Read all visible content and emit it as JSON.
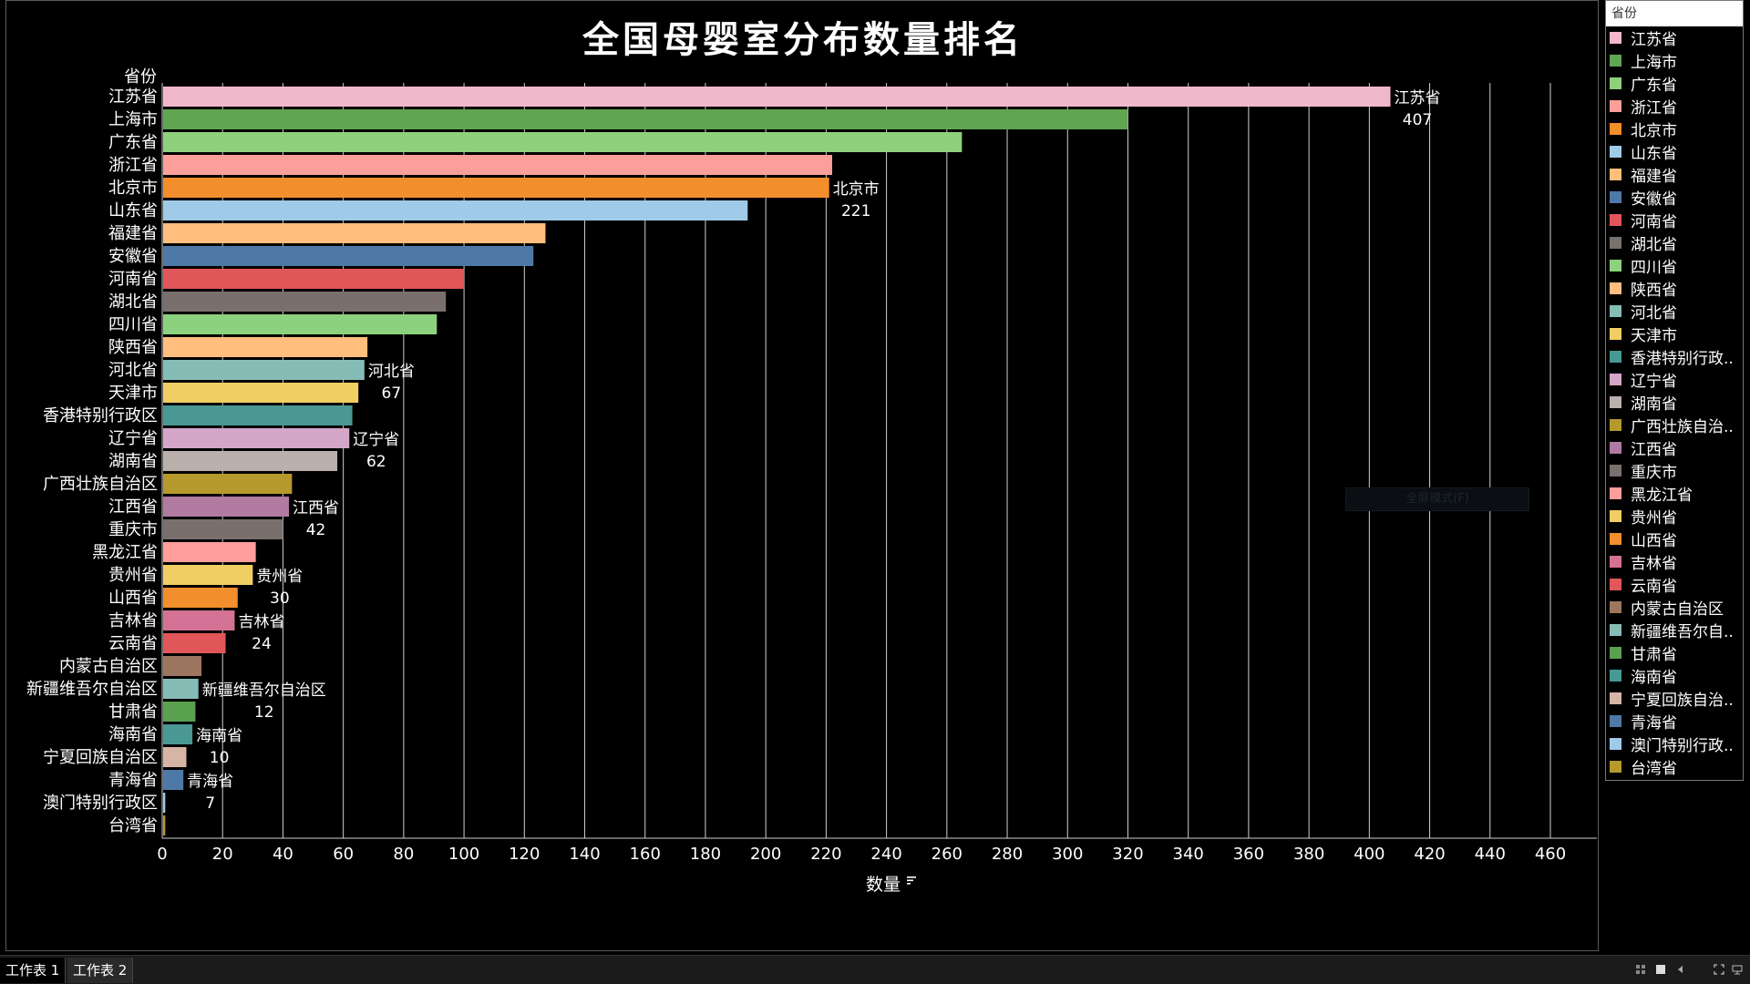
{
  "chart_data": {
    "type": "bar",
    "orientation": "horizontal",
    "title": "全国母婴室分布数量排名",
    "row_header": "省份",
    "xlabel": "数量",
    "xlim": [
      0,
      470
    ],
    "xticks": [
      0,
      20,
      40,
      60,
      80,
      100,
      120,
      140,
      160,
      180,
      200,
      220,
      240,
      260,
      280,
      300,
      320,
      340,
      360,
      380,
      400,
      420,
      440,
      460
    ],
    "grid": "vertical",
    "legend_title": "省份",
    "legend_position": "right",
    "categories": [
      "江苏省",
      "上海市",
      "广东省",
      "浙江省",
      "北京市",
      "山东省",
      "福建省",
      "安徽省",
      "河南省",
      "湖北省",
      "四川省",
      "陕西省",
      "河北省",
      "天津市",
      "香港特别行政区",
      "辽宁省",
      "湖南省",
      "广西壮族自治区",
      "江西省",
      "重庆市",
      "黑龙江省",
      "贵州省",
      "山西省",
      "吉林省",
      "云南省",
      "内蒙古自治区",
      "新疆维吾尔自治区",
      "甘肃省",
      "海南省",
      "宁夏回族自治区",
      "青海省",
      "澳门特别行政区",
      "台湾省"
    ],
    "values": [
      407,
      320,
      265,
      222,
      221,
      194,
      127,
      123,
      100,
      94,
      91,
      68,
      67,
      65,
      63,
      62,
      58,
      43,
      42,
      40,
      31,
      30,
      25,
      24,
      21,
      13,
      12,
      11,
      10,
      8,
      7,
      1,
      1
    ],
    "colors": [
      "#f1b8cc",
      "#5fa552",
      "#8fd07c",
      "#fc9e9a",
      "#f28e2b",
      "#a0cbe8",
      "#ffbe7d",
      "#4e79a7",
      "#e15759",
      "#79706e",
      "#8cd17d",
      "#ffbe7d",
      "#86bcb6",
      "#f1ce63",
      "#499894",
      "#d4a6c8",
      "#bab0ac",
      "#b6992d",
      "#b07aa1",
      "#79706e",
      "#ff9d9a",
      "#f1ce63",
      "#f28e2b",
      "#d37295",
      "#e15759",
      "#9d7660",
      "#86bcb6",
      "#59a14f",
      "#499894",
      "#d7b5a6",
      "#4e79a7",
      "#a0cbe8",
      "#b6992d"
    ],
    "annotations": [
      {
        "name": "江苏省",
        "value": 407
      },
      {
        "name": "北京市",
        "value": 221
      },
      {
        "name": "河北省",
        "value": 67
      },
      {
        "name": "辽宁省",
        "value": 62
      },
      {
        "name": "江西省",
        "value": 42
      },
      {
        "name": "贵州省",
        "value": 30
      },
      {
        "name": "吉林省",
        "value": 24
      },
      {
        "name": "新疆维吾尔自治区",
        "value": 12
      },
      {
        "name": "海南省",
        "value": 10
      },
      {
        "name": "青海省",
        "value": 7
      }
    ]
  },
  "legend": {
    "title": "省份",
    "items": [
      "江苏省",
      "上海市",
      "广东省",
      "浙江省",
      "北京市",
      "山东省",
      "福建省",
      "安徽省",
      "河南省",
      "湖北省",
      "四川省",
      "陕西省",
      "河北省",
      "天津市",
      "香港特别行政..",
      "辽宁省",
      "湖南省",
      "广西壮族自治..",
      "江西省",
      "重庆市",
      "黑龙江省",
      "贵州省",
      "山西省",
      "吉林省",
      "云南省",
      "内蒙古自治区",
      "新疆维吾尔自..",
      "甘肃省",
      "海南省",
      "宁夏回族自治..",
      "青海省",
      "澳门特别行政..",
      "台湾省"
    ]
  },
  "tooltip_ghost": "全屏模式(F)",
  "tabs": [
    "工作表 1",
    "工作表 2"
  ],
  "sort_icon": "sort-icon"
}
